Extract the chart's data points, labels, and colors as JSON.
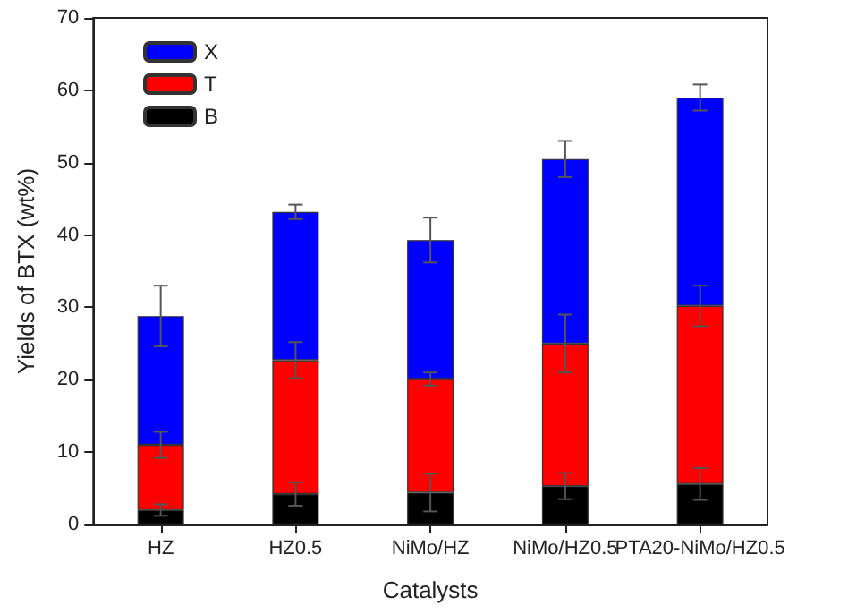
{
  "chart_data": {
    "type": "bar",
    "stacked": true,
    "xlabel": "Catalysts",
    "ylabel": "Yields of BTX (wt%)",
    "categories": [
      "HZ",
      "HZ0.5",
      "NiMo/HZ",
      "NiMo/HZ0.5",
      "PTA20-NiMo/HZ0.5"
    ],
    "series": [
      {
        "name": "B",
        "color": "#000000",
        "values": [
          2,
          4.2,
          4.4,
          5.3,
          5.6
        ],
        "errors": [
          0.8,
          1.6,
          2.6,
          1.8,
          2.2
        ]
      },
      {
        "name": "T",
        "color": "#ff0000",
        "values": [
          9,
          18.5,
          15.7,
          19.7,
          24.6
        ],
        "errors": [
          1.8,
          2.5,
          0.9,
          4,
          2.8
        ]
      },
      {
        "name": "X",
        "color": "#0000ff",
        "values": [
          17.8,
          20.5,
          19.2,
          25.5,
          28.8
        ],
        "errors": [
          4.2,
          1,
          3.1,
          2.5,
          1.8
        ]
      }
    ],
    "ylim": [
      0,
      70
    ],
    "yticks": [
      0,
      10,
      20,
      30,
      40,
      50,
      60,
      70
    ],
    "grid": false,
    "legend": "top left"
  }
}
